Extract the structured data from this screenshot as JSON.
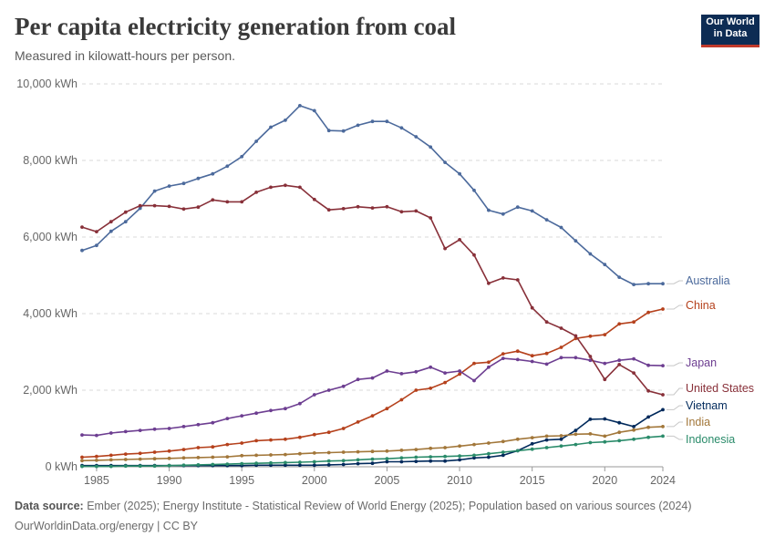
{
  "header": {
    "title": "Per capita electricity generation from coal",
    "subtitle": "Measured in kilowatt-hours per person.",
    "logo_line1": "Our World",
    "logo_line2": "in Data"
  },
  "footer": {
    "source_label": "Data source:",
    "source_text": "Ember (2025); Energy Institute - Statistical Review of World Energy (2025); Population based on various sources (2024)",
    "credit": "OurWorldinData.org/energy | CC BY"
  },
  "chart_data": {
    "type": "line",
    "title": "Per capita electricity generation from coal",
    "ylabel": "",
    "xlabel": "",
    "xlim": [
      1984,
      2024
    ],
    "ylim": [
      0,
      10000
    ],
    "x_ticks": [
      1985,
      1990,
      1995,
      2000,
      2005,
      2010,
      2015,
      2020,
      2024
    ],
    "y_ticks": [
      {
        "value": 0,
        "label": "0 kWh"
      },
      {
        "value": 2000,
        "label": "2,000 kWh"
      },
      {
        "value": 4000,
        "label": "4,000 kWh"
      },
      {
        "value": 6000,
        "label": "6,000 kWh"
      },
      {
        "value": 8000,
        "label": "8,000 kWh"
      },
      {
        "value": 10000,
        "label": "10,000 kWh"
      }
    ],
    "grid": true,
    "legend": "right (inline labels)",
    "x": [
      1984,
      1985,
      1986,
      1987,
      1988,
      1989,
      1990,
      1991,
      1992,
      1993,
      1994,
      1995,
      1996,
      1997,
      1998,
      1999,
      2000,
      2001,
      2002,
      2003,
      2004,
      2005,
      2006,
      2007,
      2008,
      2009,
      2010,
      2011,
      2012,
      2013,
      2014,
      2015,
      2016,
      2017,
      2018,
      2019,
      2020,
      2021,
      2022,
      2023,
      2024
    ],
    "series": [
      {
        "name": "Australia",
        "color": "#4c6a9c",
        "values": [
          5650,
          5780,
          6150,
          6400,
          6750,
          7200,
          7330,
          7400,
          7530,
          7650,
          7850,
          8100,
          8500,
          8870,
          9050,
          9430,
          9300,
          8780,
          8770,
          8920,
          9020,
          9020,
          8850,
          8620,
          8350,
          7950,
          7650,
          7220,
          6700,
          6600,
          6780,
          6680,
          6450,
          6250,
          5900,
          5560,
          5280,
          4950,
          4760,
          4780,
          4780
        ]
      },
      {
        "name": "China",
        "color": "#b5411c",
        "values": [
          250,
          270,
          300,
          330,
          350,
          380,
          410,
          450,
          500,
          520,
          580,
          620,
          680,
          700,
          720,
          770,
          840,
          900,
          1000,
          1170,
          1330,
          1520,
          1750,
          2000,
          2050,
          2200,
          2420,
          2700,
          2730,
          2950,
          3020,
          2900,
          2960,
          3120,
          3350,
          3410,
          3450,
          3730,
          3780,
          4030,
          4120
        ]
      },
      {
        "name": "Japan",
        "color": "#6d3e91",
        "values": [
          830,
          820,
          880,
          920,
          950,
          980,
          1000,
          1050,
          1100,
          1150,
          1260,
          1330,
          1400,
          1470,
          1520,
          1650,
          1880,
          2000,
          2100,
          2280,
          2320,
          2500,
          2430,
          2480,
          2600,
          2450,
          2500,
          2250,
          2600,
          2830,
          2800,
          2750,
          2680,
          2850,
          2850,
          2780,
          2700,
          2780,
          2820,
          2650,
          2640
        ]
      },
      {
        "name": "United States",
        "color": "#883039",
        "values": [
          6260,
          6140,
          6400,
          6650,
          6820,
          6820,
          6800,
          6730,
          6780,
          6970,
          6920,
          6920,
          7170,
          7300,
          7350,
          7300,
          6980,
          6710,
          6740,
          6790,
          6760,
          6790,
          6660,
          6680,
          6500,
          5700,
          5930,
          5530,
          4790,
          4930,
          4880,
          4150,
          3780,
          3620,
          3420,
          2880,
          2280,
          2670,
          2450,
          1980,
          1880
        ]
      },
      {
        "name": "Vietnam",
        "color": "#00295b",
        "values": [
          30,
          30,
          30,
          30,
          30,
          30,
          30,
          30,
          30,
          30,
          30,
          30,
          40,
          40,
          40,
          40,
          40,
          50,
          60,
          80,
          90,
          130,
          130,
          140,
          150,
          150,
          180,
          230,
          250,
          300,
          420,
          600,
          700,
          720,
          950,
          1240,
          1250,
          1150,
          1050,
          1300,
          1490
        ]
      },
      {
        "name": "India",
        "color": "#a2773a",
        "values": [
          160,
          170,
          180,
          190,
          200,
          210,
          220,
          230,
          240,
          250,
          260,
          290,
          300,
          310,
          320,
          340,
          360,
          370,
          380,
          390,
          400,
          410,
          430,
          450,
          480,
          500,
          540,
          580,
          620,
          660,
          720,
          760,
          800,
          810,
          850,
          860,
          800,
          900,
          960,
          1030,
          1050
        ]
      },
      {
        "name": "Indonesia",
        "color": "#2a8b6a",
        "values": [
          10,
          10,
          10,
          20,
          20,
          20,
          30,
          40,
          50,
          60,
          70,
          80,
          90,
          100,
          110,
          120,
          130,
          150,
          160,
          180,
          200,
          210,
          230,
          250,
          260,
          270,
          280,
          300,
          340,
          380,
          420,
          460,
          500,
          540,
          580,
          630,
          650,
          680,
          720,
          770,
          800
        ]
      }
    ]
  }
}
